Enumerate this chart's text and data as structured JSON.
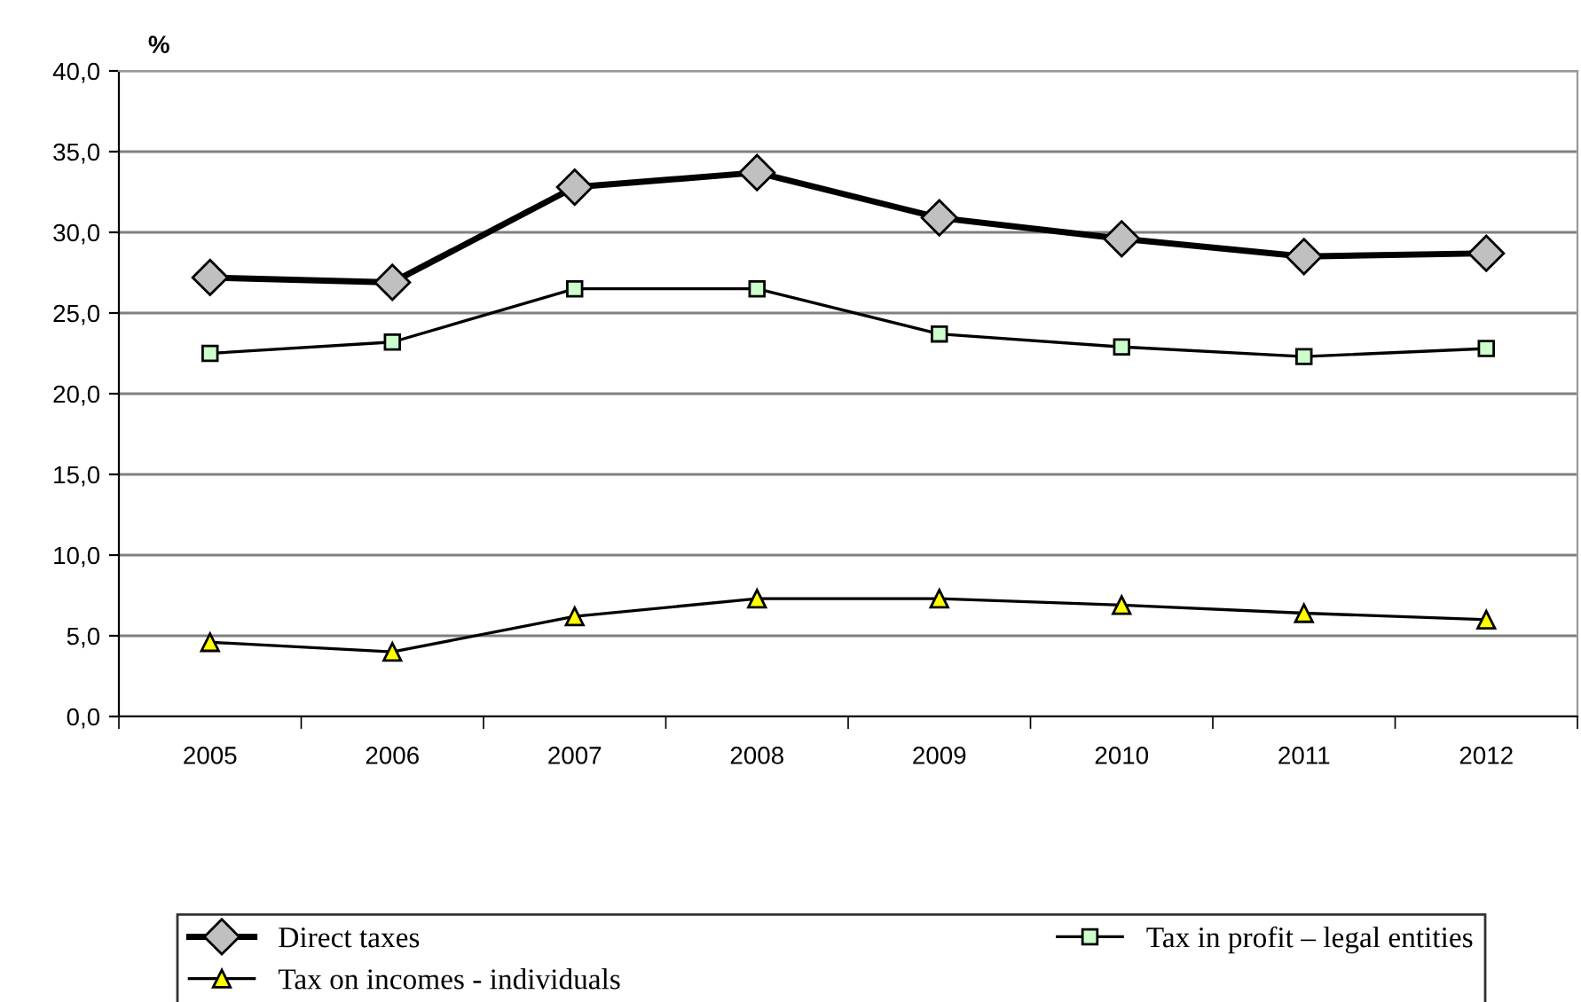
{
  "chart_data": {
    "type": "line",
    "ylabel": "%",
    "categories": [
      "2005",
      "2006",
      "2007",
      "2008",
      "2009",
      "2010",
      "2011",
      "2012"
    ],
    "series": [
      {
        "name": "Direct taxes",
        "color": "#c0c0c0",
        "marker": "diamond",
        "values": [
          27.2,
          26.9,
          32.8,
          33.7,
          30.9,
          29.6,
          28.5,
          28.7
        ]
      },
      {
        "name": "Tax in profit – legal entities",
        "color": "#ccffcc",
        "marker": "square",
        "values": [
          22.5,
          23.2,
          26.5,
          26.5,
          23.7,
          22.9,
          22.3,
          22.8
        ]
      },
      {
        "name": "Tax on incomes - individuals",
        "color": "#ffff00",
        "marker": "triangle",
        "values": [
          4.6,
          4.0,
          6.2,
          7.3,
          7.3,
          6.9,
          6.4,
          6.0
        ]
      }
    ],
    "ylim": [
      0,
      40
    ],
    "yticks": [
      {
        "value": 0,
        "label": "0,0"
      },
      {
        "value": 5,
        "label": "5,0"
      },
      {
        "value": 10,
        "label": "10,0"
      },
      {
        "value": 15,
        "label": "15,0"
      },
      {
        "value": 20,
        "label": "20,0"
      },
      {
        "value": 25,
        "label": "25,0"
      },
      {
        "value": 30,
        "label": "30,0"
      },
      {
        "value": 35,
        "label": "35,0"
      },
      {
        "value": 40,
        "label": "40,0"
      }
    ],
    "grid": "y",
    "legend": "bottom",
    "line_style": "solid"
  }
}
